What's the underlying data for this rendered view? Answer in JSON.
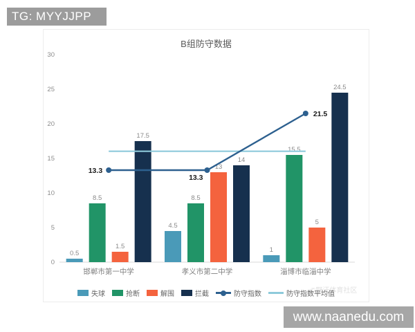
{
  "watermarks": {
    "top_left": "TG: MYYJJPP",
    "bottom_right": "www.naanedu.com",
    "stamp": "©野汗体育社区"
  },
  "chart_data": {
    "type": "bar",
    "subtype": "grouped-bar-with-line-overlay",
    "title": "B组防守数据",
    "categories": [
      "邯郸市第一中学",
      "孝义市第二中学",
      "淄博市临淄中学"
    ],
    "series": [
      {
        "name": "失球",
        "type": "bar",
        "color": "#4a9ab8",
        "values": [
          0.5,
          4.5,
          1
        ]
      },
      {
        "name": "抢断",
        "type": "bar",
        "color": "#219467",
        "values": [
          8.5,
          8.5,
          15.5
        ]
      },
      {
        "name": "解围",
        "type": "bar",
        "color": "#f4633e",
        "values": [
          1.5,
          13,
          5
        ]
      },
      {
        "name": "拦截",
        "type": "bar",
        "color": "#16304e",
        "values": [
          17.5,
          14,
          24.5
        ]
      },
      {
        "name": "防守指数",
        "type": "line",
        "color": "#2d608f",
        "values": [
          13.3,
          13.3,
          21.5
        ]
      },
      {
        "name": "防守指数平均值",
        "type": "avgline",
        "color": "#8ecadb",
        "value": 16.03
      }
    ],
    "yticks": [
      0,
      5,
      10,
      15,
      20,
      25,
      30
    ],
    "ylim": [
      0,
      30
    ],
    "grid": "off",
    "legend_position": "bottom",
    "label_color_bars": "#8a8a8a",
    "label_color_line": "#1a1a1a"
  }
}
